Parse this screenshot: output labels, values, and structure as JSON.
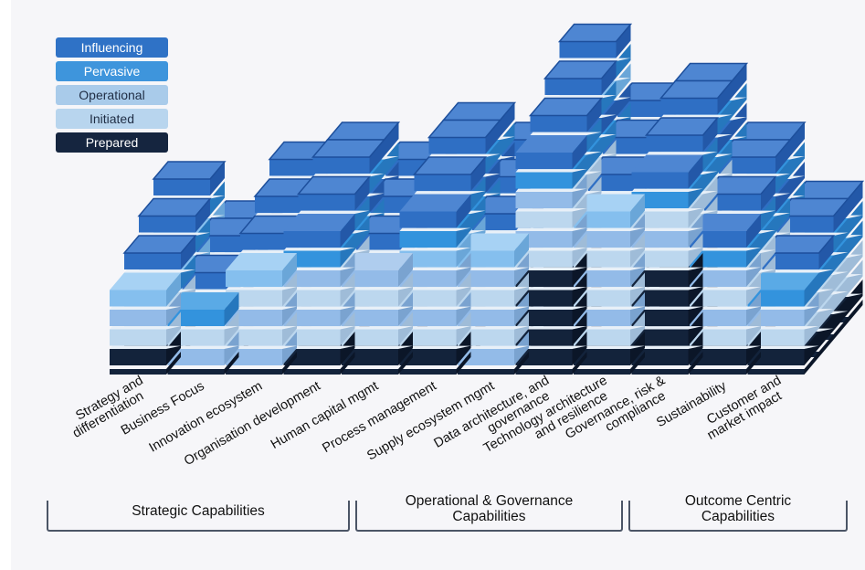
{
  "legend": {
    "items": [
      {
        "label": "Influencing",
        "color": "#2f72c6"
      },
      {
        "label": "Pervasive",
        "color": "#3e95dc"
      },
      {
        "label": "Operational",
        "color": "#a9cbea"
      },
      {
        "label": "Initiated",
        "color": "#b8d5ee"
      },
      {
        "label": "Prepared",
        "color": "#15253f"
      }
    ]
  },
  "chart_data": {
    "type": "bar",
    "subtype": "3d-stacked-depth",
    "title": "",
    "legend_position": "top-left",
    "series": [
      "Influencing",
      "Pervasive",
      "Operational",
      "Initiated",
      "Prepared"
    ],
    "categories": [
      {
        "label": [
          "Strategy and",
          "differentiation"
        ],
        "layers": [
          "Prepared",
          "Initiated",
          "Initiated",
          "Operational"
        ],
        "depth_heights": [
          4,
          5,
          6,
          7
        ]
      },
      {
        "label": [
          "Business Focus"
        ],
        "layers": [
          "Initiated",
          "Initiated",
          "Pervasive"
        ],
        "depth_heights": [
          3,
          4,
          5,
          5
        ]
      },
      {
        "label": [
          "Innovation ecosystem"
        ],
        "layers": [
          "Initiated",
          "Initiated",
          "Initiated",
          "Initiated",
          "Operational"
        ],
        "depth_heights": [
          5,
          6,
          7,
          8
        ]
      },
      {
        "label": [
          "Organisation development"
        ],
        "layers": [
          "Prepared",
          "Initiated",
          "Initiated",
          "Initiated",
          "Initiated",
          "Pervasive",
          "Influencing"
        ],
        "depth_heights": [
          7,
          8,
          9,
          9
        ]
      },
      {
        "label": [
          "Human capital mgmt"
        ],
        "layers": [
          "Prepared",
          "Initiated",
          "Initiated",
          "Initiated",
          "Initiated"
        ],
        "depth_heights": [
          5,
          6,
          7,
          8
        ]
      },
      {
        "label": [
          "Process management"
        ],
        "layers": [
          "Prepared",
          "Initiated",
          "Initiated",
          "Initiated",
          "Initiated",
          "Operational",
          "Pervasive",
          "Influencing"
        ],
        "depth_heights": [
          8,
          9,
          10,
          10
        ]
      },
      {
        "label": [
          "Supply ecosystem mgmt"
        ],
        "layers": [
          "Initiated",
          "Initiated",
          "Initiated",
          "Initiated",
          "Initiated",
          "Operational"
        ],
        "depth_heights": [
          6,
          7,
          8,
          9
        ]
      },
      {
        "label": [
          "Data architecture, and",
          "governance"
        ],
        "layers": [
          "Prepared",
          "Prepared",
          "Prepared",
          "Prepared",
          "Prepared",
          "Initiated",
          "Initiated",
          "Initiated",
          "Initiated",
          "Pervasive",
          "Influencing"
        ],
        "depth_heights": [
          11,
          12,
          13,
          14
        ]
      },
      {
        "label": [
          "Technology architecture",
          "and resilience"
        ],
        "layers": [
          "Prepared",
          "Initiated",
          "Initiated",
          "Initiated",
          "Initiated",
          "Initiated",
          "Initiated",
          "Operational"
        ],
        "depth_heights": [
          8,
          9,
          10,
          11
        ]
      },
      {
        "label": [
          "Governance, risk &",
          "compliance"
        ],
        "layers": [
          "Prepared",
          "Prepared",
          "Prepared",
          "Prepared",
          "Prepared",
          "Initiated",
          "Initiated",
          "Initiated",
          "Pervasive",
          "Influencing"
        ],
        "depth_heights": [
          10,
          11,
          12,
          12
        ]
      },
      {
        "label": [
          "Sustainability"
        ],
        "layers": [
          "Prepared",
          "Initiated",
          "Initiated",
          "Initiated",
          "Initiated",
          "Pervasive",
          "Influencing"
        ],
        "depth_heights": [
          7,
          8,
          9,
          9
        ]
      },
      {
        "label": [
          "Customer and",
          "market impact"
        ],
        "layers": [
          "Prepared",
          "Initiated",
          "Initiated",
          "Pervasive",
          "Influencing"
        ],
        "depth_heights": [
          4,
          5,
          6,
          6
        ]
      }
    ]
  },
  "groups": [
    {
      "label": [
        "Strategic Capabilities"
      ]
    },
    {
      "label": [
        "Operational & Governance",
        "Capabilities"
      ]
    },
    {
      "label": [
        "Outcome Centric",
        "Capabilities"
      ]
    }
  ]
}
